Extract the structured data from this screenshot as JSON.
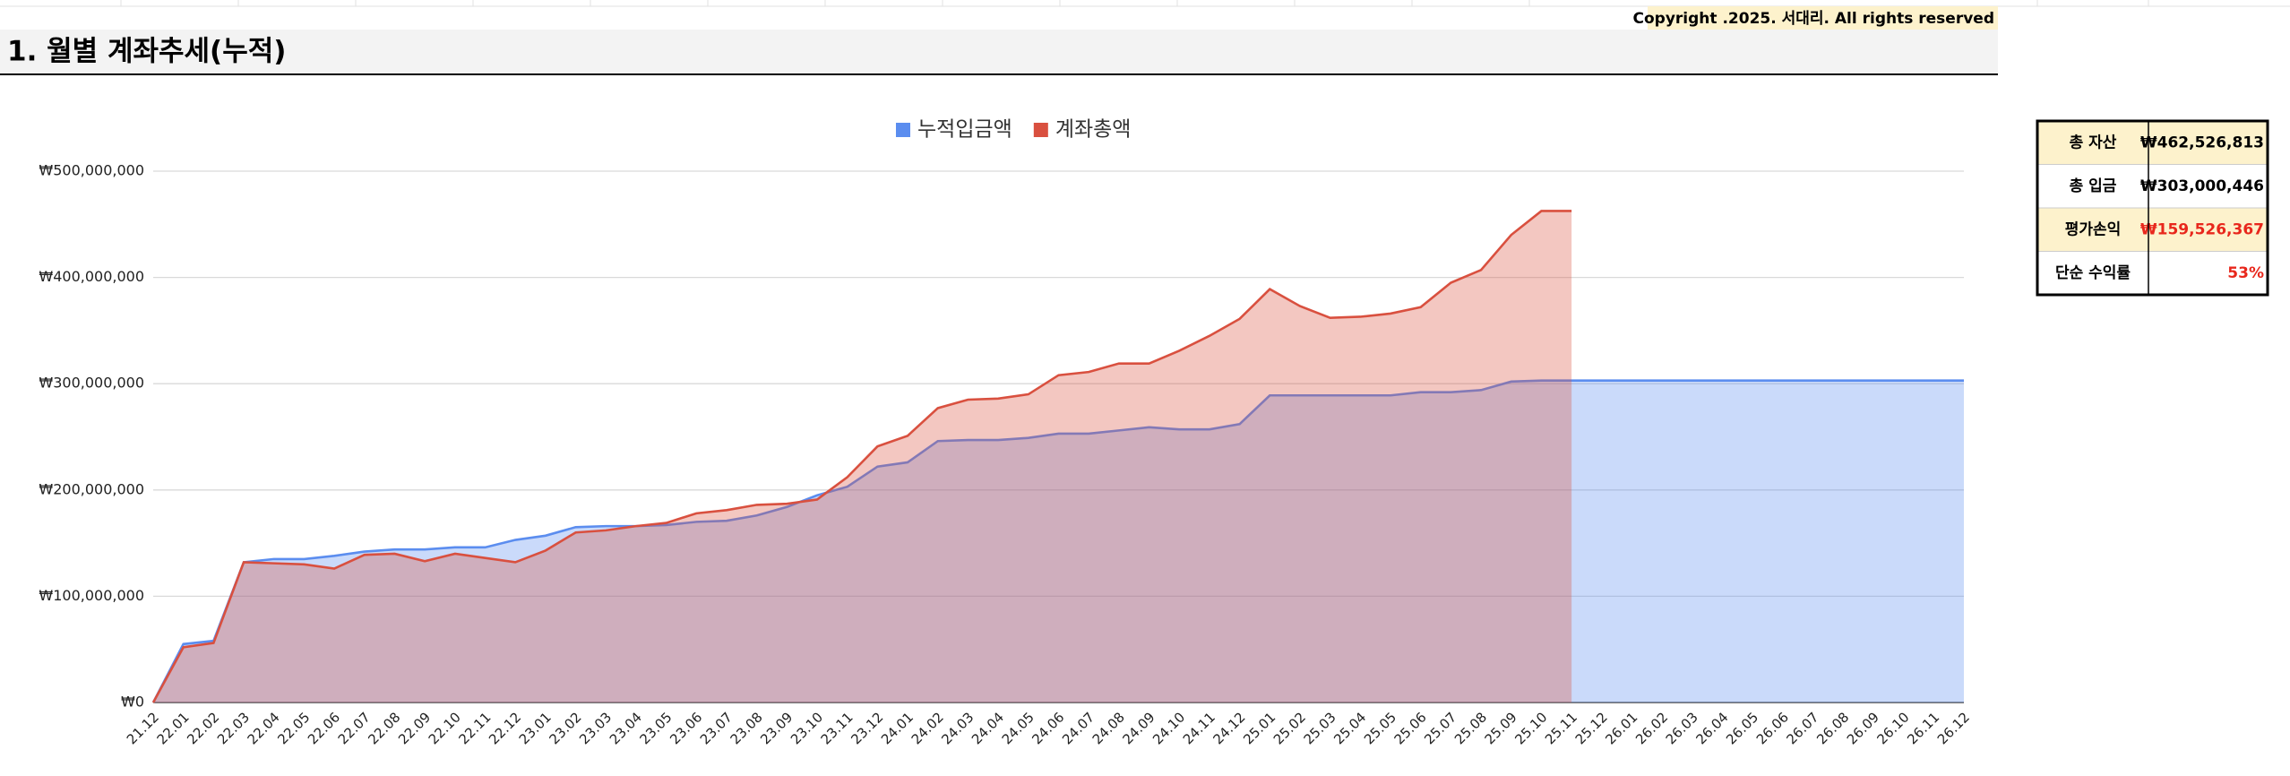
{
  "header": {
    "title": "1. 월별 계좌추세(누적)",
    "copyright": "Copyright .2025. 서대리. All rights reserved"
  },
  "chart_data": {
    "type": "area",
    "categories": [
      "21.12",
      "22.01",
      "22.02",
      "22.03",
      "22.04",
      "22.05",
      "22.06",
      "22.07",
      "22.08",
      "22.09",
      "22.10",
      "22.11",
      "22.12",
      "23.01",
      "23.02",
      "23.03",
      "23.04",
      "23.05",
      "23.06",
      "23.07",
      "23.08",
      "23.09",
      "23.10",
      "23.11",
      "23.12",
      "24.01",
      "24.02",
      "24.03",
      "24.04",
      "24.05",
      "24.06",
      "24.07",
      "24.08",
      "24.09",
      "24.10",
      "24.11",
      "24.12",
      "25.01",
      "25.02",
      "25.03",
      "25.04",
      "25.05",
      "25.06",
      "25.07",
      "25.08",
      "25.09",
      "25.10",
      "25.11",
      "25.12",
      "26.01",
      "26.02",
      "26.03",
      "26.04",
      "26.05",
      "26.06",
      "26.07",
      "26.08",
      "26.09",
      "26.10",
      "26.11",
      "26.12"
    ],
    "series": [
      {
        "name": "누적입금액",
        "color": "#5b8def",
        "values": [
          0,
          55000000,
          58000000,
          132000000,
          135000000,
          135000000,
          138000000,
          142000000,
          144000000,
          144000000,
          146000000,
          146000000,
          153000000,
          157000000,
          165000000,
          166000000,
          166000000,
          167000000,
          170000000,
          171000000,
          176000000,
          184000000,
          195000000,
          203000000,
          222000000,
          226000000,
          246000000,
          247000000,
          247000000,
          249000000,
          253000000,
          253000000,
          256000000,
          259000000,
          257000000,
          257000000,
          262000000,
          289000000,
          289000000,
          289000000,
          289000000,
          289000000,
          292000000,
          292000000,
          294000000,
          302000000,
          303000446,
          303000446,
          303000446,
          303000446,
          303000446,
          303000446,
          303000446,
          303000446,
          303000446,
          303000446,
          303000446,
          303000446,
          303000446,
          303000446,
          303000446
        ]
      },
      {
        "name": "계좌총액",
        "color": "#d9503f",
        "values": [
          0,
          52000000,
          56000000,
          132000000,
          131000000,
          130000000,
          126000000,
          139000000,
          140000000,
          133000000,
          140000000,
          136000000,
          132000000,
          143000000,
          160000000,
          162000000,
          166000000,
          169000000,
          178000000,
          181000000,
          186000000,
          187000000,
          191000000,
          212000000,
          241000000,
          251000000,
          277000000,
          285000000,
          286000000,
          290000000,
          308000000,
          311000000,
          319000000,
          319000000,
          331000000,
          345000000,
          361000000,
          389000000,
          373000000,
          362000000,
          363000000,
          366000000,
          372000000,
          395000000,
          407000000,
          440000000,
          462526813,
          462526813,
          null,
          null,
          null,
          null,
          null,
          null,
          null,
          null,
          null,
          null,
          null,
          null,
          null
        ]
      }
    ],
    "ylim": [
      0,
      500000000
    ],
    "yticks": [
      {
        "value": 0,
        "label": "₩0"
      },
      {
        "value": 100000000,
        "label": "₩100,000,000"
      },
      {
        "value": 200000000,
        "label": "₩200,000,000"
      },
      {
        "value": 300000000,
        "label": "₩300,000,000"
      },
      {
        "value": 400000000,
        "label": "₩400,000,000"
      },
      {
        "value": 500000000,
        "label": "₩500,000,000"
      }
    ],
    "grid": true,
    "legend": "top"
  },
  "summary": {
    "rows": [
      {
        "label": "총 자산",
        "value": "₩462,526,813"
      },
      {
        "label": "총 입금",
        "value": "₩303,000,446"
      },
      {
        "label": "평가손익",
        "value": "₩159,526,367"
      },
      {
        "label": "단순 수익률",
        "value": "53%"
      }
    ]
  }
}
